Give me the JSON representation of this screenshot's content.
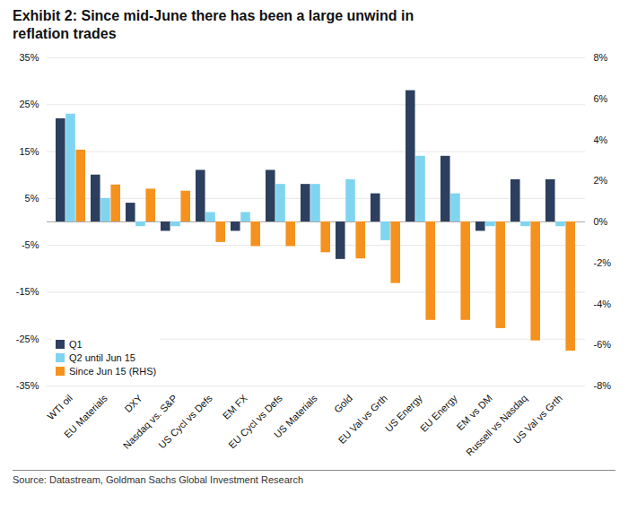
{
  "chart_data": {
    "type": "bar",
    "title": "Exhibit 2: Since mid-June there has been a large unwind in\nreflation trades",
    "source": "Source: Datastream, Goldman Sachs Global Investment Research",
    "categories": [
      "WTI oil",
      "EU Materials",
      "DXY",
      "Nasdaq vs. S&P",
      "US Cycl vs Defs",
      "EM FX",
      "EU Cycl vs Defs",
      "US Materials",
      "Gold",
      "EU Val vs Grth",
      "US Energy",
      "EU Energy",
      "EM vs DM",
      "Russell vs Nasdaq",
      "US Val vs Grth"
    ],
    "series": [
      {
        "name": "Q1",
        "color": "#2d3f5e",
        "values": [
          22,
          10,
          4,
          -2,
          11,
          -2,
          11,
          8,
          -8,
          6,
          28,
          14,
          -2,
          9,
          9
        ]
      },
      {
        "name": "Q2 until Jun 15",
        "color": "#7fd4f0",
        "values": [
          23,
          5,
          -1,
          -1,
          2,
          2,
          8,
          8,
          9,
          -4,
          14,
          6,
          -1,
          -1,
          -1
        ]
      },
      {
        "name": "Since Jun 15 (RHS)",
        "color": "#f5921e",
        "axis": "y2",
        "values": [
          3.5,
          1.8,
          1.6,
          1.5,
          -1.0,
          -1.2,
          -1.2,
          -1.5,
          -1.8,
          -3.0,
          -4.8,
          -4.8,
          -5.2,
          -5.8,
          -6.3
        ]
      }
    ],
    "ylim": [
      -35,
      35
    ],
    "yticks": [
      {
        "value": -35,
        "label": "-35%"
      },
      {
        "value": -25,
        "label": "-25%"
      },
      {
        "value": -15,
        "label": "-15%"
      },
      {
        "value": -5,
        "label": "-5%"
      },
      {
        "value": 5,
        "label": "5%"
      },
      {
        "value": 15,
        "label": "15%"
      },
      {
        "value": 25,
        "label": "25%"
      },
      {
        "value": 35,
        "label": "35%"
      }
    ],
    "y2lim": [
      -8,
      8
    ],
    "y2ticks": [
      {
        "value": -8,
        "label": "-8%"
      },
      {
        "value": -6,
        "label": "-6%"
      },
      {
        "value": -4,
        "label": "-4%"
      },
      {
        "value": -2,
        "label": "-2%"
      },
      {
        "value": 0,
        "label": "0%"
      },
      {
        "value": 2,
        "label": "2%"
      },
      {
        "value": 4,
        "label": "4%"
      },
      {
        "value": 6,
        "label": "6%"
      },
      {
        "value": 8,
        "label": "8%"
      }
    ],
    "grid": true,
    "legend": "lower left"
  }
}
